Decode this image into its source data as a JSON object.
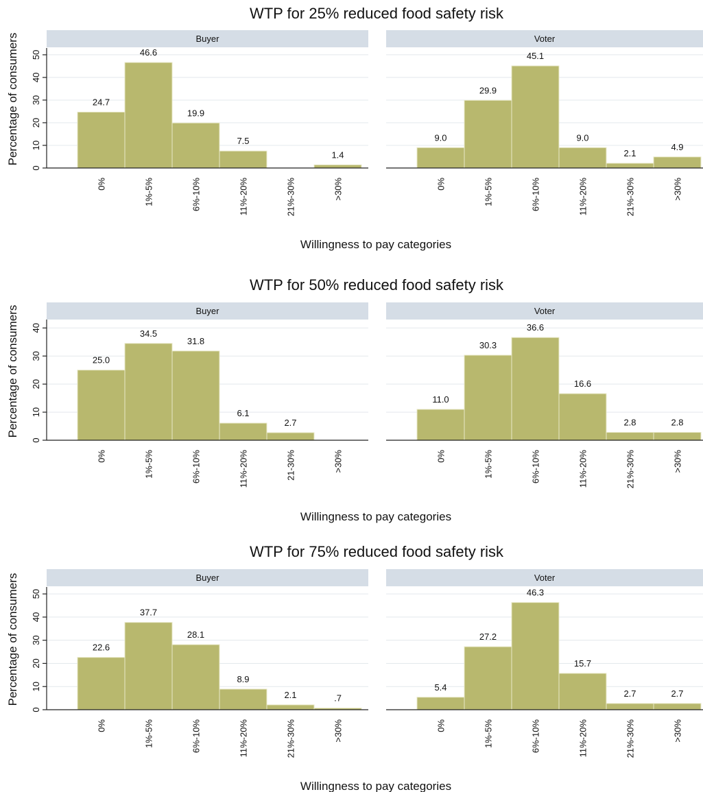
{
  "colors": {
    "bar_fill": "#b8b86e",
    "bar_stroke": "#e8e8c8",
    "strip_fill": "#d5dde6",
    "grid": "#e3e8ec",
    "axis": "#222222"
  },
  "chart_data": [
    {
      "type": "bar",
      "title": "WTP for 25% reduced food safety risk",
      "ylabel": "Percentage of consumers",
      "xlabel": "Willingness to pay categories",
      "ylim": [
        0,
        53
      ],
      "yticks": [
        0,
        10,
        20,
        30,
        40,
        50
      ],
      "grid": true,
      "panels": [
        {
          "name": "Buyer",
          "categories": [
            "0%",
            "1%-5%",
            "6%-10%",
            "11%-20%",
            "21%-30%",
            ">30%"
          ],
          "values": [
            24.7,
            46.6,
            19.9,
            7.5,
            null,
            1.4
          ],
          "labels": [
            "24.7",
            "46.6",
            "19.9",
            "7.5",
            "",
            "1.4"
          ]
        },
        {
          "name": "Voter",
          "categories": [
            "0%",
            "1%-5%",
            "6%-10%",
            "11%-20%",
            "21%-30%",
            ">30%"
          ],
          "values": [
            9.0,
            29.9,
            45.1,
            9.0,
            2.1,
            4.9
          ],
          "labels": [
            "9.0",
            "29.9",
            "45.1",
            "9.0",
            "2.1",
            "4.9"
          ]
        }
      ]
    },
    {
      "type": "bar",
      "title": "WTP for 50% reduced food safety risk",
      "ylabel": "Percentage of consumers",
      "xlabel": "Willingness to pay categories",
      "ylim": [
        0,
        43
      ],
      "yticks": [
        0,
        10,
        20,
        30,
        40
      ],
      "grid": true,
      "panels": [
        {
          "name": "Buyer",
          "categories": [
            "0%",
            "1%-5%",
            "6%-10%",
            "11%-20%",
            "21-30%",
            ">30%"
          ],
          "values": [
            25.0,
            34.5,
            31.8,
            6.1,
            2.7,
            null
          ],
          "labels": [
            "25.0",
            "34.5",
            "31.8",
            "6.1",
            "2.7",
            ""
          ]
        },
        {
          "name": "Voter",
          "categories": [
            "0%",
            "1%-5%",
            "6%-10%",
            "11%-20%",
            "21%-30%",
            ">30%"
          ],
          "values": [
            11.0,
            30.3,
            36.6,
            16.6,
            2.8,
            2.8
          ],
          "labels": [
            "11.0",
            "30.3",
            "36.6",
            "16.6",
            "2.8",
            "2.8"
          ]
        }
      ]
    },
    {
      "type": "bar",
      "title": "WTP for 75% reduced food safety risk",
      "ylabel": "Percentage of consumers",
      "xlabel": "Willingness to pay categories",
      "ylim": [
        0,
        53
      ],
      "yticks": [
        0,
        10,
        20,
        30,
        40,
        50
      ],
      "grid": true,
      "panels": [
        {
          "name": "Buyer",
          "categories": [
            "0%",
            "1%-5%",
            "6%-10%",
            "11%-20%",
            "21%-30%",
            ">30%"
          ],
          "values": [
            22.6,
            37.7,
            28.1,
            8.9,
            2.1,
            0.7
          ],
          "labels": [
            "22.6",
            "37.7",
            "28.1",
            "8.9",
            "2.1",
            ".7"
          ]
        },
        {
          "name": "Voter",
          "categories": [
            "0%",
            "1%-5%",
            "6%-10%",
            "11%-20%",
            "21%-30%",
            ">30%"
          ],
          "values": [
            5.4,
            27.2,
            46.3,
            15.7,
            2.7,
            2.7
          ],
          "labels": [
            "5.4",
            "27.2",
            "46.3",
            "15.7",
            "2.7",
            "2.7"
          ]
        }
      ]
    }
  ]
}
